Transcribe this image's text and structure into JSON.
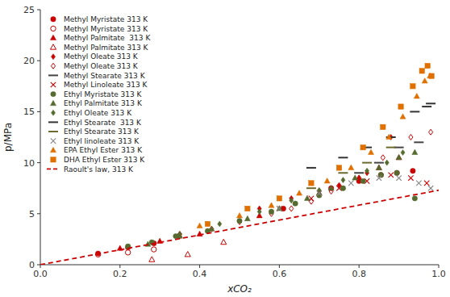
{
  "chart_data": {
    "type": "scatter",
    "xlabel": "xCO₂",
    "ylabel": "p/MPa",
    "xlim": [
      0,
      1
    ],
    "ylim": [
      0,
      25
    ],
    "xticks": [
      {
        "value": 0,
        "label": "0.0"
      },
      0.2,
      0.4,
      0.6,
      0.8,
      {
        "value": 1,
        "label": "1.0"
      }
    ],
    "yticks": [
      0,
      5,
      10,
      15,
      20,
      25
    ],
    "grid": false,
    "legend": "upper-left",
    "series": [
      {
        "name": "Methyl Myristate 313 K",
        "color": "#cc0000",
        "marker": "circle",
        "x": [
          0.145,
          0.22,
          0.285,
          0.61,
          0.73,
          0.8,
          0.855,
          0.895,
          0.935
        ],
        "values": [
          1.1,
          1.7,
          2.1,
          5.5,
          7.5,
          8.2,
          8.8,
          9.0,
          9.2
        ]
      },
      {
        "name": "Methyl Myristate 313 K",
        "color": "#cc0000",
        "marker": "circle-open",
        "x": [
          0.145,
          0.22,
          0.285
        ],
        "values": [
          1.0,
          1.2,
          1.5
        ]
      },
      {
        "name": "Methyl Palmitate  313 K",
        "color": "#cc0000",
        "marker": "triangle",
        "x": [
          0.2,
          0.3,
          0.4,
          0.55,
          0.7,
          0.8,
          0.85,
          0.9
        ],
        "values": [
          1.6,
          2.3,
          3.0,
          4.8,
          7.0,
          8.5,
          9.5,
          10.5
        ]
      },
      {
        "name": "Methyl Palmitate 313 K",
        "color": "#cc0000",
        "marker": "triangle-open",
        "x": [
          0.28,
          0.37,
          0.46
        ],
        "values": [
          0.5,
          1.0,
          2.2
        ]
      },
      {
        "name": "Methyl Oleate 313 K",
        "color": "#cc0000",
        "marker": "diamond",
        "x": [
          0.35,
          0.55,
          0.63,
          0.7,
          0.75,
          0.82,
          0.88
        ],
        "values": [
          2.8,
          5.5,
          6.5,
          7.2,
          7.8,
          9.0,
          12.5
        ]
      },
      {
        "name": "Methyl Oleate 313 K",
        "color": "#cc0000",
        "marker": "diamond-open",
        "x": [
          0.35,
          0.43,
          0.5,
          0.58,
          0.63,
          0.68,
          0.73,
          0.8,
          0.86,
          0.93,
          0.98
        ],
        "values": [
          3.0,
          3.5,
          4.2,
          5.0,
          5.5,
          6.2,
          7.2,
          8.5,
          10.5,
          12.5,
          13.0
        ]
      },
      {
        "name": "Methyl Stearate 313 K",
        "color": "#444444",
        "marker": "dash",
        "x": [
          0.8,
          0.85,
          0.9,
          0.95
        ],
        "values": [
          9.0,
          10.0,
          11.5,
          12.0
        ]
      },
      {
        "name": "Methyl Linoleate 313 K",
        "color": "#cc0000",
        "marker": "cross",
        "x": [
          0.6,
          0.68,
          0.75,
          0.82,
          0.88,
          0.93,
          0.97
        ],
        "values": [
          5.5,
          6.5,
          7.5,
          8.2,
          8.8,
          8.5,
          8.0
        ]
      },
      {
        "name": "Ethyl Myristate 313 K",
        "color": "#556b2f",
        "marker": "circle",
        "x": [
          0.22,
          0.28,
          0.34,
          0.42,
          0.5,
          0.58,
          0.64,
          0.7,
          0.76,
          0.81,
          0.855,
          0.895,
          0.94
        ],
        "values": [
          1.8,
          2.2,
          2.8,
          3.3,
          4.3,
          5.2,
          6.0,
          6.8,
          7.5,
          8.2,
          8.8,
          9.0,
          6.5
        ]
      },
      {
        "name": "Ethyl Palmitate 313 K",
        "color": "#556b2f",
        "marker": "triangle",
        "x": [
          0.27,
          0.35,
          0.43,
          0.52,
          0.6,
          0.67,
          0.73,
          0.79,
          0.85,
          0.9,
          0.94
        ],
        "values": [
          2.0,
          2.8,
          3.5,
          4.5,
          5.5,
          6.5,
          7.5,
          8.5,
          9.5,
          10.5,
          11.0
        ]
      },
      {
        "name": "Ethyl Oleate 313 K",
        "color": "#556b2f",
        "marker": "diamond",
        "x": [
          0.35,
          0.45,
          0.55,
          0.63,
          0.7,
          0.76,
          0.82,
          0.87,
          0.91
        ],
        "values": [
          3.0,
          4.0,
          5.2,
          6.3,
          7.3,
          8.3,
          9.2,
          10.0,
          11.0
        ]
      },
      {
        "name": "Ethyl Stearate  313 K",
        "color": "#333333",
        "marker": "dash",
        "x": [
          0.68,
          0.76,
          0.82,
          0.88,
          0.94,
          0.97,
          0.98
        ],
        "values": [
          9.5,
          10.5,
          11.5,
          12.5,
          15.0,
          15.5,
          15.8
        ]
      },
      {
        "name": "Ethyl Stearate 313 K",
        "color": "#6b6b2f",
        "marker": "dash",
        "x": [
          0.68,
          0.76,
          0.82,
          0.88
        ],
        "values": [
          7.5,
          9.0,
          10.0,
          11.5
        ]
      },
      {
        "name": "Ethyl linoleate 313 K",
        "color": "#888888",
        "marker": "cross",
        "x": [
          0.6,
          0.7,
          0.78,
          0.85,
          0.9,
          0.95,
          0.98
        ],
        "values": [
          5.5,
          7.0,
          8.0,
          8.5,
          8.5,
          8.0,
          7.5
        ]
      },
      {
        "name": "EPA Ethyl Ester 313 K",
        "color": "#e07000",
        "marker": "triangle",
        "x": [
          0.4,
          0.5,
          0.58,
          0.65,
          0.72,
          0.78,
          0.83,
          0.875,
          0.91,
          0.945,
          0.965,
          0.978
        ],
        "values": [
          3.8,
          4.8,
          5.8,
          7.0,
          8.2,
          9.5,
          11.0,
          12.5,
          14.5,
          16.5,
          18.0,
          18.5
        ]
      },
      {
        "name": "DHA Ethyl Ester 313 K",
        "color": "#e07000",
        "marker": "square",
        "x": [
          0.42,
          0.52,
          0.6,
          0.68,
          0.75,
          0.81,
          0.86,
          0.905,
          0.935,
          0.958,
          0.972,
          0.982
        ],
        "values": [
          4.0,
          5.5,
          6.5,
          8.0,
          9.5,
          11.5,
          13.5,
          15.5,
          17.5,
          19.0,
          19.5,
          18.5
        ]
      },
      {
        "name": "Raoult's law, 313 K",
        "color": "#cc0000",
        "type": "line",
        "line_style": "dashed",
        "x": [
          0.0,
          0.1,
          0.2,
          0.3,
          0.4,
          0.5,
          0.6,
          0.7,
          0.8,
          0.9,
          1.0
        ],
        "values": [
          0.0,
          0.73,
          1.46,
          2.19,
          2.92,
          3.65,
          4.38,
          5.11,
          5.84,
          6.57,
          7.3
        ]
      }
    ]
  }
}
